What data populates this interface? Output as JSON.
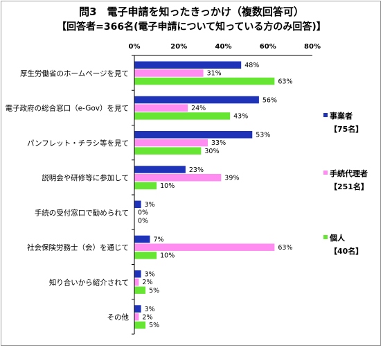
{
  "chart_data": {
    "type": "bar",
    "orientation": "horizontal",
    "title": "問3　電子申請を知ったきっかけ（複数回答可）",
    "subtitle": "【回答者=366名(電子申請について知っている方のみ回答)】",
    "categories": [
      "厚生労働省のホームページを見て",
      "電子政府の総合窓口（e-Gov）を見て",
      "パンフレット・チラシ等を見て",
      "説明会や研修等に参加して",
      "手続の受付窓口で勧められて",
      "社会保険労務士（会）を通じて",
      "知り合いから紹介されて",
      "その他"
    ],
    "series": [
      {
        "name": "事業者",
        "note": "【75名】",
        "color": "#1f33b8",
        "values": [
          48,
          56,
          53,
          23,
          3,
          7,
          3,
          3
        ]
      },
      {
        "name": "手続代理者",
        "note": "【251名】",
        "color": "#ff8cf0",
        "values": [
          31,
          24,
          33,
          39,
          0,
          63,
          2,
          2
        ]
      },
      {
        "name": "個人",
        "note": "【40名】",
        "color": "#66e633",
        "values": [
          63,
          43,
          30,
          10,
          0,
          10,
          5,
          5
        ]
      }
    ],
    "xlim": [
      0,
      80
    ],
    "xticks": [
      "0%",
      "20%",
      "40%",
      "60%",
      "80%"
    ],
    "value_suffix": "%",
    "grid": false,
    "legend_position": "right"
  }
}
